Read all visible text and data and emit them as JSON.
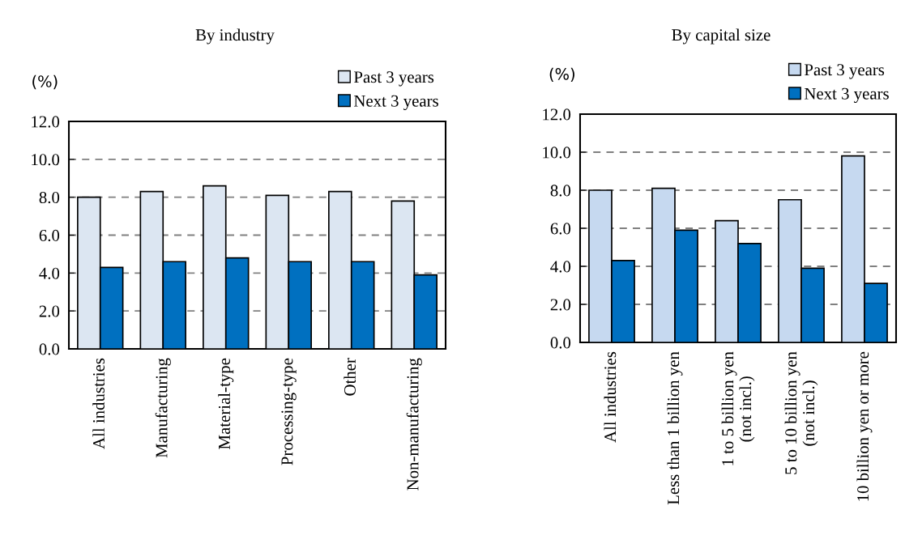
{
  "chart_data": [
    {
      "type": "bar",
      "title": "By industry",
      "ylabel": "(%)",
      "categories": [
        "All industries",
        "Manufacturing",
        "Material-type",
        "Processing-type",
        "Other",
        "Non-manufacturing"
      ],
      "series": [
        {
          "name": "Past 3 years",
          "color": "#dce6f2",
          "values": [
            8.0,
            8.3,
            8.6,
            8.1,
            8.3,
            7.8
          ]
        },
        {
          "name": "Next 3 years",
          "color": "#0070c0",
          "values": [
            4.3,
            4.6,
            4.8,
            4.6,
            4.6,
            3.9
          ]
        }
      ],
      "ylim": [
        0,
        12
      ],
      "yticks": [
        {
          "value": 0,
          "label": "0.0"
        },
        {
          "value": 2,
          "label": "2.0"
        },
        {
          "value": 4,
          "label": "4.0"
        },
        {
          "value": 6,
          "label": "6.0"
        },
        {
          "value": 8,
          "label": "8.0"
        },
        {
          "value": 10,
          "label": "10.0"
        },
        {
          "value": 12,
          "label": "12.0"
        }
      ],
      "grid": "y",
      "legend": "top right"
    },
    {
      "type": "bar",
      "title": "By capital size",
      "ylabel": "(%)",
      "categories": [
        "All industries",
        "Less than 1 billion yen",
        "1 to 5 billion yen\n(not incl.)",
        "5 to 10 billion yen\n(not incl.)",
        "10 billion yen or more"
      ],
      "series": [
        {
          "name": "Past 3 years",
          "color": "#c6d9f0",
          "values": [
            8.0,
            8.1,
            6.4,
            7.5,
            9.8
          ]
        },
        {
          "name": "Next 3 years",
          "color": "#0070c0",
          "values": [
            4.3,
            5.9,
            5.2,
            3.9,
            3.1
          ]
        }
      ],
      "ylim": [
        0,
        12
      ],
      "yticks": [
        {
          "value": 0,
          "label": "0.0"
        },
        {
          "value": 2,
          "label": "2.0"
        },
        {
          "value": 4,
          "label": "4.0"
        },
        {
          "value": 6,
          "label": "6.0"
        },
        {
          "value": 8,
          "label": "8.0"
        },
        {
          "value": 10,
          "label": "10.0"
        },
        {
          "value": 12,
          "label": "12.0"
        }
      ],
      "grid": "y",
      "legend": "top right"
    }
  ]
}
